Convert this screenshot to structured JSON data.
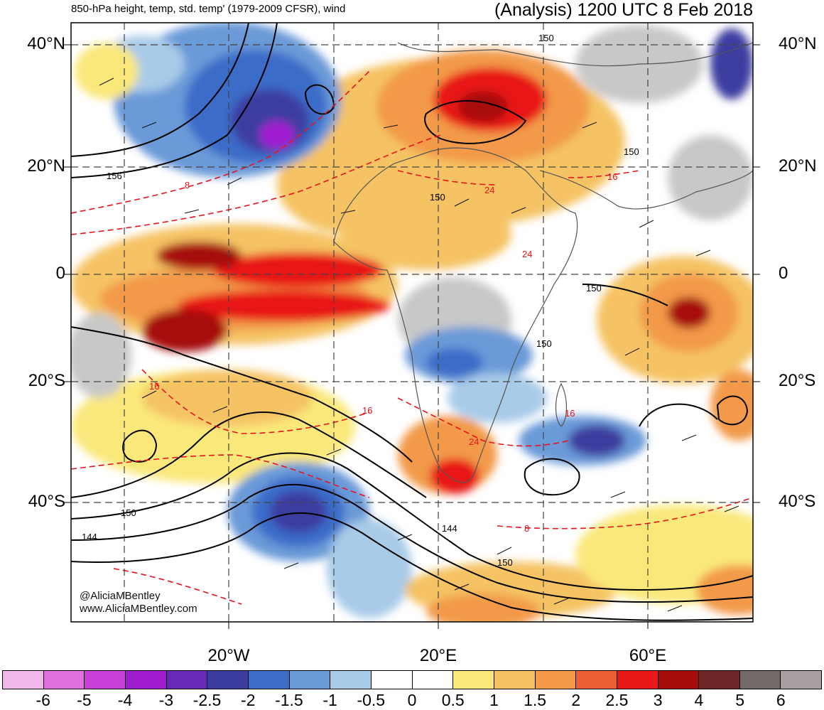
{
  "header": {
    "left_title": "850-hPa height, temp, std. temp' (1979-2009 CFSR), wind",
    "right_title": "(Analysis) 1200 UTC 8 Feb 2018"
  },
  "map": {
    "latitude_labels": [
      "40°N",
      "20°N",
      "0",
      "20°S",
      "40°S"
    ],
    "longitude_labels": [
      "20°W",
      "20°E",
      "60°E"
    ],
    "height_contour_labels": [
      "150",
      "156",
      "150",
      "150",
      "150",
      "150",
      "144",
      "150",
      "144",
      "150"
    ],
    "temperature_contour_labels": [
      "24",
      "16",
      "8",
      "16",
      "16",
      "24",
      "16",
      "24",
      "8"
    ],
    "colors": {
      "contour_height": "#000000",
      "contour_temperature": "#e8141c",
      "land_gray": "#c8c8c8",
      "border": "#555555"
    }
  },
  "credit": {
    "handle": "@AliciaMBentley",
    "website": "www.AliciaMBentley.com"
  },
  "colorbar": {
    "colors": [
      "#f2b8ec",
      "#e070e0",
      "#c83fd8",
      "#a01cd0",
      "#6a28b8",
      "#3c3ca0",
      "#3a6cc8",
      "#6a9ad8",
      "#a8cbe8",
      "#ffffff",
      "#ffffff",
      "#fae87a",
      "#f5c364",
      "#f29a48",
      "#ee5e34",
      "#e81818",
      "#a60c0c",
      "#6e2828",
      "#736a6a",
      "#a8a0a0"
    ],
    "tick_labels": [
      "-6",
      "-5",
      "-4",
      "-3",
      "-2.5",
      "-2",
      "-1.5",
      "-1",
      "-0.5",
      "0",
      "0.5",
      "1",
      "1.5",
      "2",
      "2.5",
      "3",
      "4",
      "5",
      "6"
    ]
  }
}
